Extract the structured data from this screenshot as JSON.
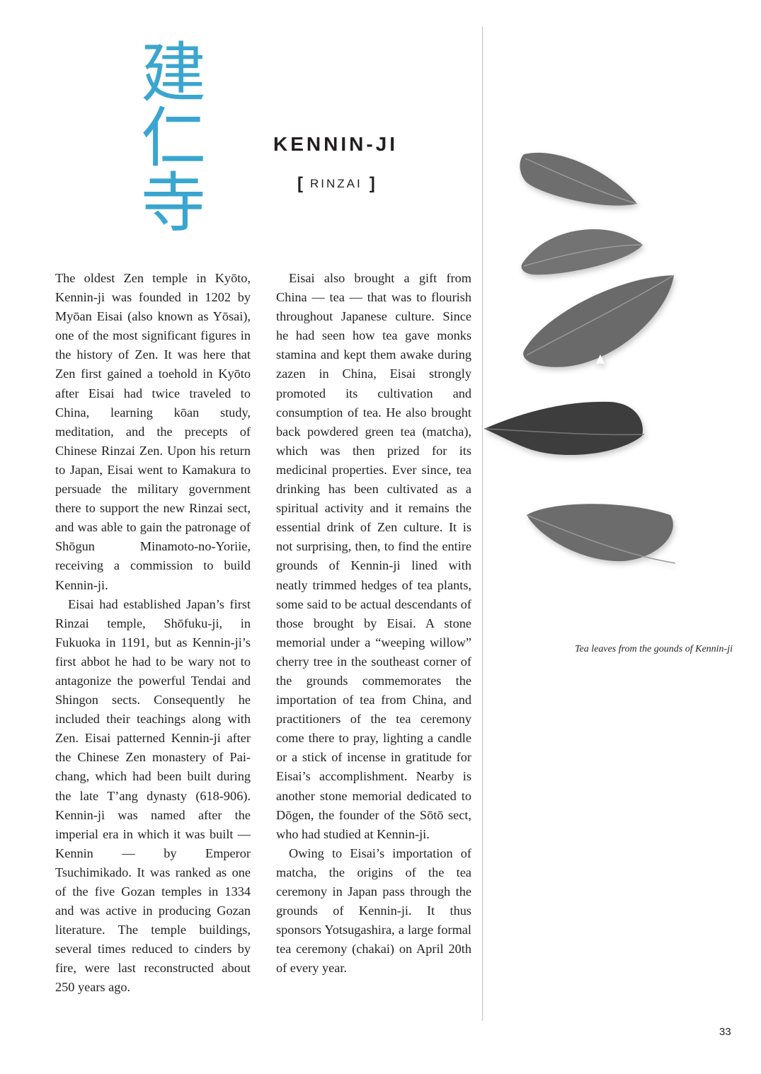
{
  "kanji": [
    "建",
    "仁",
    "寺"
  ],
  "title": "KENNIN-JI",
  "sect": {
    "open_bracket": "[",
    "label": "RINZAI",
    "close_bracket": "]"
  },
  "columns": {
    "left": [
      "The oldest Zen temple in Kyōto, Kennin-ji was founded in 1202 by Myōan Eisai (also known as Yōsai), one of the most significant figures in the history of Zen. It was here that Zen first gained a toehold in Kyōto after Eisai had twice traveled to China, learning kōan study, meditation, and the precepts of Chinese Rinzai Zen. Upon his return to Japan, Eisai went to Kamakura to persuade the military government there to support the new Rinzai sect, and was able to gain the patronage of Shōgun Minamoto-no-Yoriie, receiving a commission to build Kennin-ji.",
      "Eisai had established Japan’s first Rinzai temple, Shōfuku-ji, in Fukuoka in 1191, but as Kennin-ji’s first abbot he had to be wary not to antagonize the powerful Tendai and Shingon sects. Consequently he included their teachings along with Zen. Eisai patterned Kennin-ji after the Chinese Zen monastery of Pai-chang, which had been built during the late T’ang dynasty (618-906). Kennin-ji was named after the imperial era in which it was built — Kennin — by Emperor Tsuchimikado. It was ranked as one of the five Gozan temples in 1334 and was active in producing Gozan literature. The temple buildings, several times reduced to cinders by fire, were last reconstructed about 250 years ago."
    ],
    "middle": [
      "Eisai also brought a gift from China — tea — that was to flourish throughout Japanese culture. Since he had seen how tea gave monks stamina and kept them awake during zazen in China, Eisai strongly promoted its cultivation and consumption of tea. He also brought back powdered green tea (matcha), which was then prized for its medicinal properties. Ever since, tea drinking has been cultivated as a spiritual activity and it remains the essential drink of Zen culture. It is not surprising, then, to find the entire grounds of Kennin-ji lined with neatly trimmed hedges of tea plants, some said to be actual descendants of those brought by Eisai. A stone memorial under a “weeping willow” cherry tree in the southeast corner of the grounds commemorates the importation of tea from China, and practitioners of the tea ceremony come there to pray, lighting a candle or a stick of incense in gratitude for Eisai’s accomplishment. Nearby is another stone memorial dedicated to Dōgen, the founder of the Sōtō sect, who had studied at Kennin-ji.",
      "Owing to Eisai’s importation of matcha, the origins of the tea ceremony in Japan pass through the grounds of Kennin-ji. It thus sponsors Yotsugashira, a large formal tea ceremony (chakai) on April 20th of every year."
    ]
  },
  "caption": "Tea leaves from the gounds of Kennin-ji",
  "page_number": "33",
  "colors": {
    "kanji": "#3aa6cf",
    "text": "#231f20",
    "divider": "#bfbfbf",
    "leaf": "#6e6e6e",
    "leaf_dark": "#3e3e3e"
  }
}
